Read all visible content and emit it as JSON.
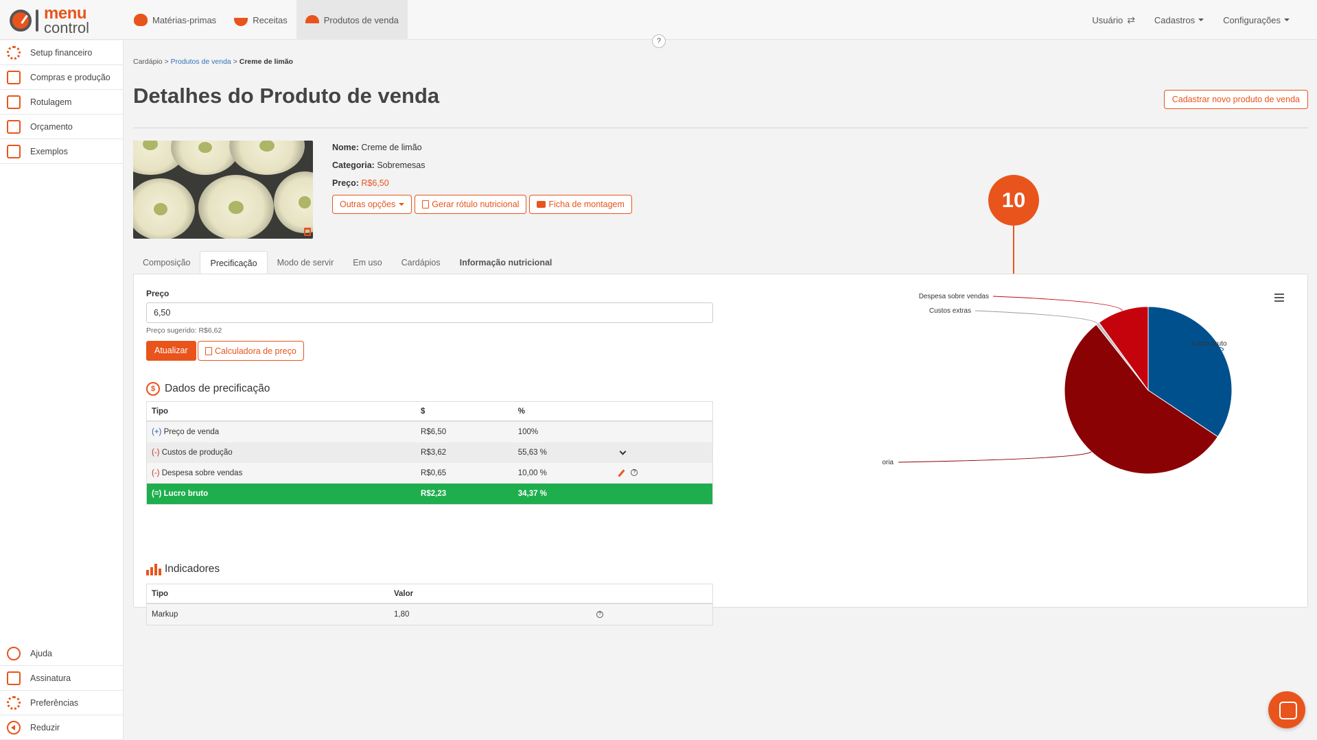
{
  "app": {
    "logo_line1": "menu",
    "logo_line2": "control"
  },
  "topnav": {
    "items": [
      {
        "label": "Matérias-primas",
        "icon": "tomato-icon"
      },
      {
        "label": "Receitas",
        "icon": "bowl-icon"
      },
      {
        "label": "Produtos de venda",
        "icon": "cloche-icon",
        "active": true
      }
    ],
    "right": [
      {
        "label": "Usuário"
      },
      {
        "label": "Cadastros"
      },
      {
        "label": "Configurações"
      }
    ],
    "help": "?"
  },
  "sidebar": {
    "items": [
      {
        "label": "Setup financeiro"
      },
      {
        "label": "Compras e produção"
      },
      {
        "label": "Rotulagem"
      },
      {
        "label": "Orçamento"
      },
      {
        "label": "Exemplos"
      }
    ],
    "bottom": [
      {
        "label": "Ajuda"
      },
      {
        "label": "Assinatura"
      },
      {
        "label": "Preferências"
      },
      {
        "label": "Reduzir"
      }
    ]
  },
  "breadcrumb": {
    "root": "Cardápio",
    "sep": ">",
    "link": "Produtos de venda",
    "current": "Creme de limão"
  },
  "page": {
    "title": "Detalhes do Produto de venda",
    "new_button": "Cadastrar novo produto de venda"
  },
  "product": {
    "nome_label": "Nome:",
    "nome": "Creme de limão",
    "categoria_label": "Categoria:",
    "categoria": "Sobremesas",
    "preco_label": "Preço:",
    "preco": "R$6,50",
    "buttons": {
      "outras": "Outras opções",
      "rotulo": "Gerar rótulo nutricional",
      "ficha": "Ficha de montagem"
    }
  },
  "callout": {
    "number": "10"
  },
  "tabs": [
    {
      "label": "Composição"
    },
    {
      "label": "Precificação",
      "active": true
    },
    {
      "label": "Modo de servir"
    },
    {
      "label": "Em uso"
    },
    {
      "label": "Cardápios"
    },
    {
      "label": "Informação nutricional"
    }
  ],
  "pricing": {
    "label": "Preço",
    "value": "6,50",
    "suggested": "Preço sugerido: R$6,62",
    "update_button": "Atualizar",
    "calculator_button": "Calculadora de preço"
  },
  "dados": {
    "title": "Dados de precificação",
    "icon_glyph": "$",
    "headers": {
      "tipo": "Tipo",
      "valor": "$",
      "pct": "%"
    },
    "rows": [
      {
        "sign": "(+)",
        "label": "Preço de venda",
        "value": "R$6,50",
        "pct": "100%"
      },
      {
        "sign": "(-)",
        "label": "Custos de produção",
        "value": "R$3,62",
        "pct": "55,63 %"
      },
      {
        "sign": "(-)",
        "label": "Despesa sobre vendas",
        "value": "R$0,65",
        "pct": "10,00 %"
      },
      {
        "sign": "(=)",
        "label": "Lucro bruto",
        "value": "R$2,23",
        "pct": "34,37 %"
      }
    ]
  },
  "indicadores": {
    "title": "Indicadores",
    "headers": {
      "tipo": "Tipo",
      "valor": "Valor"
    },
    "rows": [
      {
        "label": "Markup",
        "value": "1,80"
      }
    ]
  },
  "chart_data": {
    "type": "pie",
    "slices": [
      {
        "label": "Lucro bruto",
        "value": 34.37,
        "color": "#01508e"
      },
      {
        "label": "Custo de mercadoria",
        "value": 55.0,
        "color": "#8b0205"
      },
      {
        "label": "Custos extras",
        "value": 0.63,
        "color": "#c0c0c0"
      },
      {
        "label": "Despesa sobre vendas",
        "value": 10.0,
        "color": "#c5030d"
      }
    ]
  },
  "colors": {
    "accent": "#e8541c",
    "green": "#1eae4e"
  }
}
